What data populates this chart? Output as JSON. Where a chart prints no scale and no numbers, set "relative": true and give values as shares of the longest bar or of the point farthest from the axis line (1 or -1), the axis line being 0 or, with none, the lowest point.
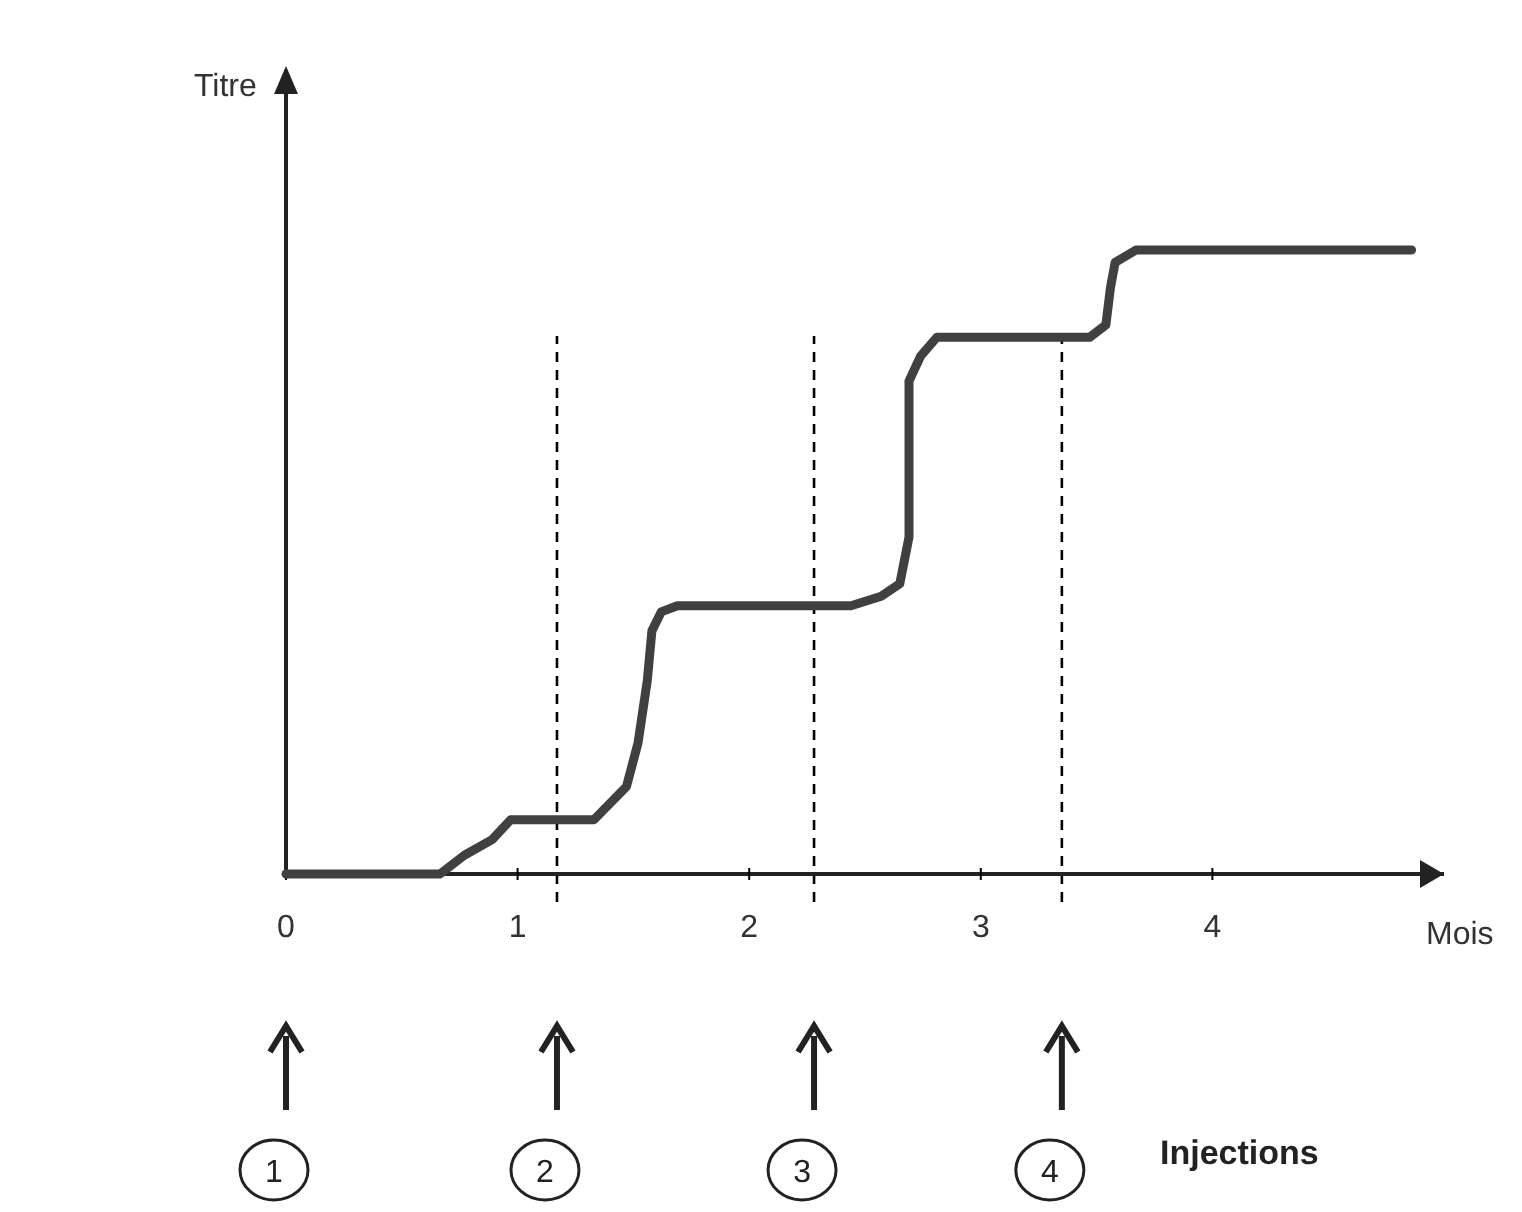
{
  "chart_data": {
    "type": "line",
    "relative": true,
    "ylabel": "Titre",
    "xlabel": "Mois",
    "xlim": [
      0,
      5
    ],
    "xticks": [
      0,
      1,
      2,
      3,
      4
    ],
    "line_style": "solid",
    "marker": "none",
    "series": [
      {
        "color": "#404040",
        "x": [
          0,
          0.665,
          0.77,
          0.89,
          0.97,
          1.33,
          1.47,
          1.52,
          1.56,
          1.58,
          1.62,
          1.69,
          2.44,
          2.57,
          2.65,
          2.69,
          2.69,
          2.74,
          2.81,
          3.47,
          3.54,
          3.56,
          3.58,
          3.67,
          4.86
        ],
        "values": [
          0,
          0,
          0.03,
          0.055,
          0.087,
          0.087,
          0.14,
          0.21,
          0.31,
          0.39,
          0.42,
          0.43,
          0.43,
          0.445,
          0.465,
          0.54,
          0.79,
          0.83,
          0.86,
          0.86,
          0.88,
          0.94,
          0.98,
          1,
          1
        ]
      }
    ],
    "ref_lines": [
      {
        "axis": "x",
        "value": 1.17,
        "line_style": "dashed"
      },
      {
        "axis": "x",
        "value": 2.28,
        "line_style": "dashed"
      },
      {
        "axis": "x",
        "value": 3.35,
        "line_style": "dashed"
      }
    ],
    "annotations": [
      "1",
      "2",
      "3",
      "4",
      "Injections"
    ]
  }
}
